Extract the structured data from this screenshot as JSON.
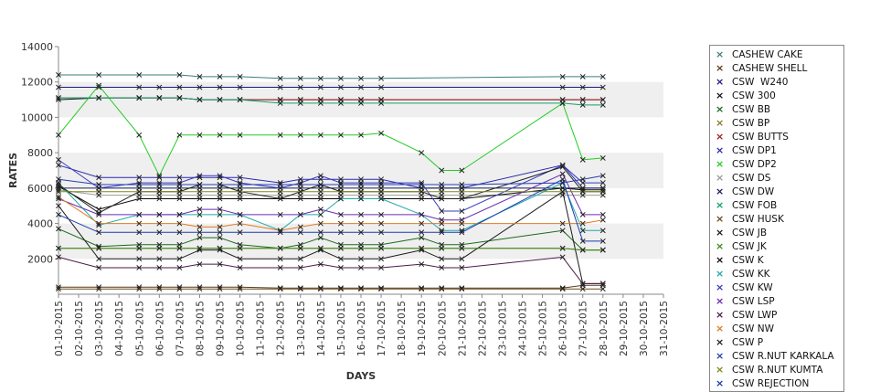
{
  "chart_data": {
    "type": "line",
    "xlabel": "DAYS",
    "ylabel": "RATES",
    "ylim": [
      0,
      14000
    ],
    "yticks": [
      2000,
      4000,
      6000,
      8000,
      10000,
      12000,
      14000
    ],
    "grid": "alternating horizontal bands",
    "legend": "right",
    "categories": [
      "01-10-2015",
      "02-10-2015",
      "03-10-2015",
      "04-10-2015",
      "05-10-2015",
      "06-10-2015",
      "07-10-2015",
      "08-10-2015",
      "09-10-2015",
      "10-10-2015",
      "11-10-2015",
      "12-10-2015",
      "13-10-2015",
      "14-10-2015",
      "15-10-2015",
      "16-10-2015",
      "17-10-2015",
      "18-10-2015",
      "19-10-2015",
      "20-10-2015",
      "21-10-2015",
      "22-10-2015",
      "23-10-2015",
      "24-10-2015",
      "25-10-2015",
      "26-10-2015",
      "27-10-2015",
      "28-10-2015",
      "29-10-2015",
      "30-10-2015",
      "31-10-2015"
    ],
    "series": [
      {
        "name": "CASHEW CAKE",
        "color": "#3a7f7f",
        "values": [
          12400,
          null,
          12400,
          null,
          12400,
          null,
          12400,
          12300,
          12300,
          12300,
          null,
          12200,
          12200,
          12200,
          12200,
          12200,
          12200,
          null,
          null,
          null,
          null,
          null,
          null,
          null,
          null,
          12300,
          12300,
          12300,
          null,
          null,
          null
        ]
      },
      {
        "name": "CASHEW SHELL",
        "color": "#5a3a1a",
        "values": [
          400,
          null,
          400,
          null,
          400,
          400,
          400,
          400,
          400,
          400,
          null,
          350,
          350,
          350,
          350,
          350,
          350,
          null,
          350,
          350,
          350,
          null,
          null,
          null,
          null,
          350,
          500,
          500,
          null,
          null,
          null
        ]
      },
      {
        "name": "CSW  W240",
        "color": "#1a1a80",
        "values": [
          11700,
          null,
          11700,
          null,
          11700,
          11700,
          11700,
          11700,
          11700,
          11700,
          null,
          11700,
          11700,
          11700,
          11700,
          11700,
          11700,
          null,
          null,
          null,
          null,
          null,
          null,
          null,
          null,
          11700,
          11700,
          11700,
          null,
          null,
          null
        ]
      },
      {
        "name": "CSW 300",
        "color": "#111111",
        "values": [
          11000,
          null,
          11100,
          null,
          11100,
          11100,
          11100,
          11000,
          11000,
          11000,
          null,
          11000,
          11000,
          11000,
          11000,
          11000,
          11000,
          null,
          null,
          null,
          null,
          null,
          null,
          null,
          null,
          11000,
          11000,
          11000,
          null,
          null,
          null
        ]
      },
      {
        "name": "CSW BB",
        "color": "#1a6a1a",
        "values": [
          3700,
          null,
          2700,
          null,
          2800,
          2800,
          2800,
          3200,
          3200,
          2800,
          null,
          2600,
          2800,
          3200,
          2800,
          2800,
          2800,
          null,
          3200,
          2800,
          2800,
          null,
          null,
          null,
          null,
          3600,
          2500,
          2500,
          null,
          null,
          null
        ]
      },
      {
        "name": "CSW BP",
        "color": "#8a7a2a",
        "values": [
          2600,
          null,
          2600,
          null,
          2600,
          2600,
          2600,
          2600,
          2600,
          2600,
          null,
          2600,
          2600,
          2600,
          2600,
          2600,
          2600,
          null,
          2600,
          2600,
          2600,
          null,
          null,
          null,
          null,
          2600,
          2500,
          2500,
          null,
          null,
          null
        ]
      },
      {
        "name": "CSW BUTTS",
        "color": "#a02020",
        "values": [
          11100,
          null,
          11100,
          null,
          11100,
          11100,
          11100,
          11000,
          11000,
          11000,
          null,
          11000,
          11000,
          11000,
          11000,
          11000,
          11000,
          null,
          null,
          null,
          null,
          null,
          null,
          null,
          null,
          11000,
          11000,
          11000,
          null,
          null,
          null
        ]
      },
      {
        "name": "CSW DP1",
        "color": "#2a2ab0",
        "values": [
          7300,
          null,
          6600,
          null,
          6600,
          6600,
          6600,
          6600,
          6600,
          6600,
          null,
          6300,
          6500,
          6500,
          6500,
          6500,
          6500,
          null,
          6000,
          6000,
          6000,
          null,
          null,
          null,
          null,
          7300,
          6000,
          6000,
          null,
          null,
          null
        ]
      },
      {
        "name": "CSW DP2",
        "color": "#22cc22",
        "values": [
          9000,
          null,
          11800,
          null,
          9000,
          6700,
          9000,
          9000,
          9000,
          9000,
          null,
          9000,
          9000,
          9000,
          9000,
          9000,
          9100,
          null,
          8000,
          7000,
          7000,
          null,
          null,
          null,
          null,
          10800,
          7600,
          7700,
          null,
          null,
          null
        ]
      },
      {
        "name": "CSW DS",
        "color": "#9a9a9a",
        "values": [
          5900,
          null,
          5600,
          null,
          5600,
          5600,
          5600,
          5600,
          5600,
          5600,
          null,
          5600,
          5600,
          5600,
          5600,
          5600,
          5600,
          null,
          5600,
          5600,
          5600,
          null,
          null,
          null,
          null,
          5600,
          5600,
          5600,
          null,
          null,
          null
        ]
      },
      {
        "name": "CSW DW",
        "color": "#1a1a5a",
        "values": [
          6000,
          null,
          6000,
          null,
          6000,
          6000,
          6000,
          6000,
          6000,
          6000,
          null,
          6000,
          6000,
          6000,
          6000,
          6000,
          6000,
          null,
          6000,
          6000,
          6000,
          null,
          null,
          null,
          null,
          6000,
          6000,
          6000,
          null,
          null,
          null
        ]
      },
      {
        "name": "CSW FOB",
        "color": "#10a070",
        "values": [
          11100,
          null,
          11100,
          null,
          11100,
          11100,
          11100,
          11000,
          11000,
          11000,
          null,
          10800,
          10800,
          10800,
          10800,
          10800,
          10800,
          null,
          null,
          null,
          null,
          null,
          null,
          null,
          null,
          10800,
          10700,
          10700,
          null,
          null,
          null
        ]
      },
      {
        "name": "CSW HUSK",
        "color": "#6a4a1a",
        "values": [
          300,
          null,
          300,
          null,
          300,
          300,
          300,
          300,
          300,
          300,
          null,
          300,
          300,
          300,
          300,
          300,
          300,
          null,
          300,
          300,
          300,
          null,
          null,
          null,
          null,
          300,
          300,
          300,
          null,
          null,
          null
        ]
      },
      {
        "name": "CSW JB",
        "color": "#1a1a1a",
        "values": [
          5000,
          null,
          2000,
          null,
          2000,
          2000,
          2000,
          2500,
          2500,
          2000,
          null,
          2000,
          2000,
          2500,
          2000,
          2000,
          2000,
          null,
          2500,
          2000,
          2000,
          null,
          null,
          null,
          null,
          5800,
          600,
          600,
          null,
          null,
          null
        ]
      },
      {
        "name": "CSW JK",
        "color": "#3a8a1a",
        "values": [
          2600,
          null,
          2600,
          null,
          2600,
          2600,
          2600,
          2600,
          2600,
          2600,
          null,
          2600,
          2600,
          2600,
          2600,
          2600,
          2600,
          null,
          2600,
          2600,
          2600,
          null,
          null,
          null,
          null,
          2600,
          2500,
          2500,
          null,
          null,
          null
        ]
      },
      {
        "name": "CSW K",
        "color": "#0a0a0a",
        "values": [
          6100,
          null,
          4800,
          null,
          5400,
          5400,
          5400,
          5400,
          5400,
          5400,
          null,
          5400,
          5400,
          5400,
          5400,
          5400,
          5400,
          null,
          5400,
          5400,
          5400,
          null,
          null,
          null,
          null,
          6000,
          5900,
          5900,
          null,
          null,
          null
        ]
      },
      {
        "name": "CSW KK",
        "color": "#20a8a8",
        "values": [
          6300,
          null,
          3900,
          null,
          4500,
          4500,
          4500,
          4500,
          4500,
          4500,
          null,
          3600,
          4500,
          4500,
          5400,
          5400,
          5400,
          null,
          4500,
          3600,
          3600,
          null,
          null,
          null,
          null,
          6300,
          3600,
          3600,
          null,
          null,
          null
        ]
      },
      {
        "name": "CSW KW",
        "color": "#3a3ac0",
        "values": [
          7600,
          null,
          6000,
          null,
          6300,
          6300,
          6300,
          6700,
          6700,
          6300,
          null,
          6000,
          6300,
          6700,
          6300,
          6300,
          6300,
          null,
          6300,
          4700,
          4700,
          null,
          null,
          null,
          null,
          7300,
          6300,
          6300,
          null,
          null,
          null
        ]
      },
      {
        "name": "CSW LSP",
        "color": "#6a2ab0",
        "values": [
          5400,
          null,
          4500,
          null,
          4500,
          4500,
          4500,
          4800,
          4800,
          4500,
          null,
          4500,
          4500,
          4800,
          4500,
          4500,
          4500,
          null,
          4500,
          4200,
          4200,
          null,
          null,
          null,
          null,
          6800,
          4500,
          4500,
          null,
          null,
          null
        ]
      },
      {
        "name": "CSW LWP",
        "color": "#4a1a4a",
        "values": [
          2100,
          null,
          1500,
          null,
          1500,
          1500,
          1500,
          1700,
          1700,
          1500,
          null,
          1500,
          1500,
          1700,
          1500,
          1500,
          1500,
          null,
          1700,
          1500,
          1500,
          null,
          null,
          null,
          null,
          2100,
          600,
          600,
          null,
          null,
          null
        ]
      },
      {
        "name": "CSW NW",
        "color": "#e07a20",
        "values": [
          5500,
          null,
          4000,
          null,
          4000,
          4000,
          4000,
          3800,
          3800,
          4000,
          null,
          3600,
          3800,
          4000,
          4000,
          4000,
          4000,
          null,
          4000,
          4000,
          4000,
          null,
          null,
          null,
          null,
          4000,
          4000,
          4200,
          null,
          null,
          null
        ]
      },
      {
        "name": "CSW P",
        "color": "#202020",
        "values": [
          6200,
          null,
          4600,
          null,
          5800,
          5800,
          5800,
          6200,
          6200,
          5800,
          null,
          5400,
          5800,
          6200,
          5800,
          5800,
          5800,
          null,
          5800,
          5400,
          5400,
          null,
          null,
          null,
          null,
          7200,
          5800,
          5800,
          null,
          null,
          null
        ]
      },
      {
        "name": "CSW R.NUT KARKALA",
        "color": "#2040b0",
        "values": [
          6500,
          null,
          6200,
          null,
          6200,
          6200,
          6200,
          6200,
          6200,
          6200,
          null,
          6200,
          6200,
          6200,
          6200,
          6200,
          6200,
          null,
          6200,
          6200,
          6200,
          null,
          null,
          null,
          null,
          6300,
          6500,
          6700,
          null,
          null,
          null
        ]
      },
      {
        "name": "CSW R.NUT KUMTA",
        "color": "#7a8a10",
        "values": [
          5800,
          null,
          5800,
          null,
          5800,
          5800,
          5800,
          5800,
          5800,
          5800,
          null,
          5800,
          5800,
          5800,
          5800,
          5800,
          5800,
          null,
          5800,
          5800,
          5800,
          null,
          null,
          null,
          null,
          5800,
          5800,
          5800,
          null,
          null,
          null
        ]
      },
      {
        "name": "CSW REJECTION",
        "color": "#1a3ab0",
        "values": [
          4500,
          null,
          3500,
          null,
          3500,
          3500,
          3500,
          3500,
          3500,
          3500,
          null,
          3500,
          3500,
          3500,
          3500,
          3500,
          3500,
          null,
          3500,
          3500,
          3500,
          null,
          null,
          null,
          null,
          6500,
          3000,
          3000,
          null,
          null,
          null
        ]
      }
    ]
  }
}
